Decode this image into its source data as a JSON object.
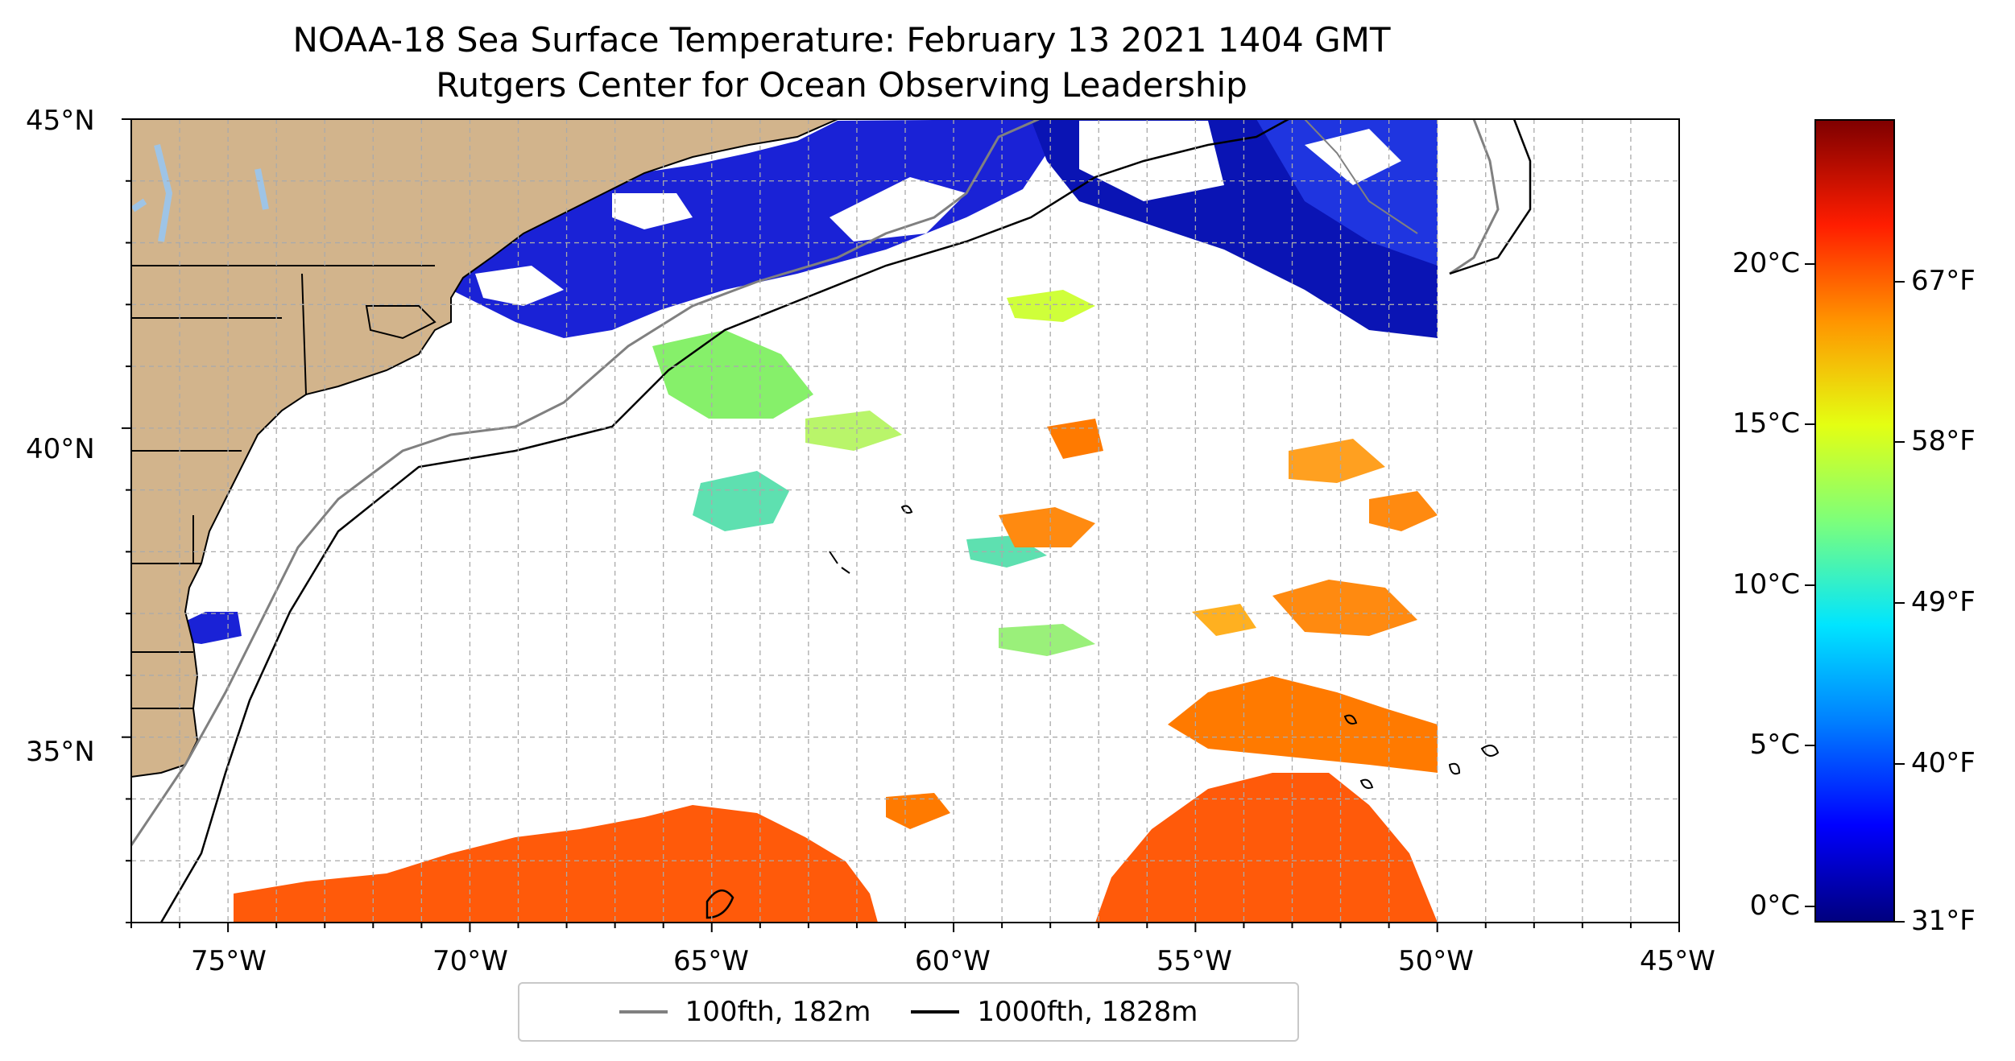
{
  "title": {
    "line1": "NOAA-18 Sea Surface Temperature: February 13 2021 1404 GMT",
    "line2": "Rutgers Center for Ocean Observing Leadership"
  },
  "axes": {
    "x_ticks": [
      "75°W",
      "70°W",
      "65°W",
      "60°W",
      "55°W",
      "50°W",
      "45°W"
    ],
    "y_ticks": [
      "45°N",
      "40°N",
      "35°N"
    ]
  },
  "legend": {
    "items": [
      {
        "label": "100fth, 182m",
        "color": "#808080"
      },
      {
        "label": "1000fth, 1828m",
        "color": "#000000"
      }
    ]
  },
  "colorbar": {
    "celsius_ticks": [
      {
        "label": "20°C",
        "value": 20
      },
      {
        "label": "15°C",
        "value": 15
      },
      {
        "label": "10°C",
        "value": 10
      },
      {
        "label": "5°C",
        "value": 5
      },
      {
        "label": "0°C",
        "value": 0
      }
    ],
    "fahrenheit_ticks": [
      {
        "label": "67°F",
        "value": 67
      },
      {
        "label": "58°F",
        "value": 58
      },
      {
        "label": "49°F",
        "value": 49
      },
      {
        "label": "40°F",
        "value": 40
      },
      {
        "label": "31°F",
        "value": 31
      }
    ],
    "range_celsius": [
      -0.5,
      24.5
    ]
  },
  "colors": {
    "land": "#d2b48c",
    "lakes": "#9ec4e6",
    "cold": "#0a14c8",
    "warm": "#ff6a00"
  }
}
